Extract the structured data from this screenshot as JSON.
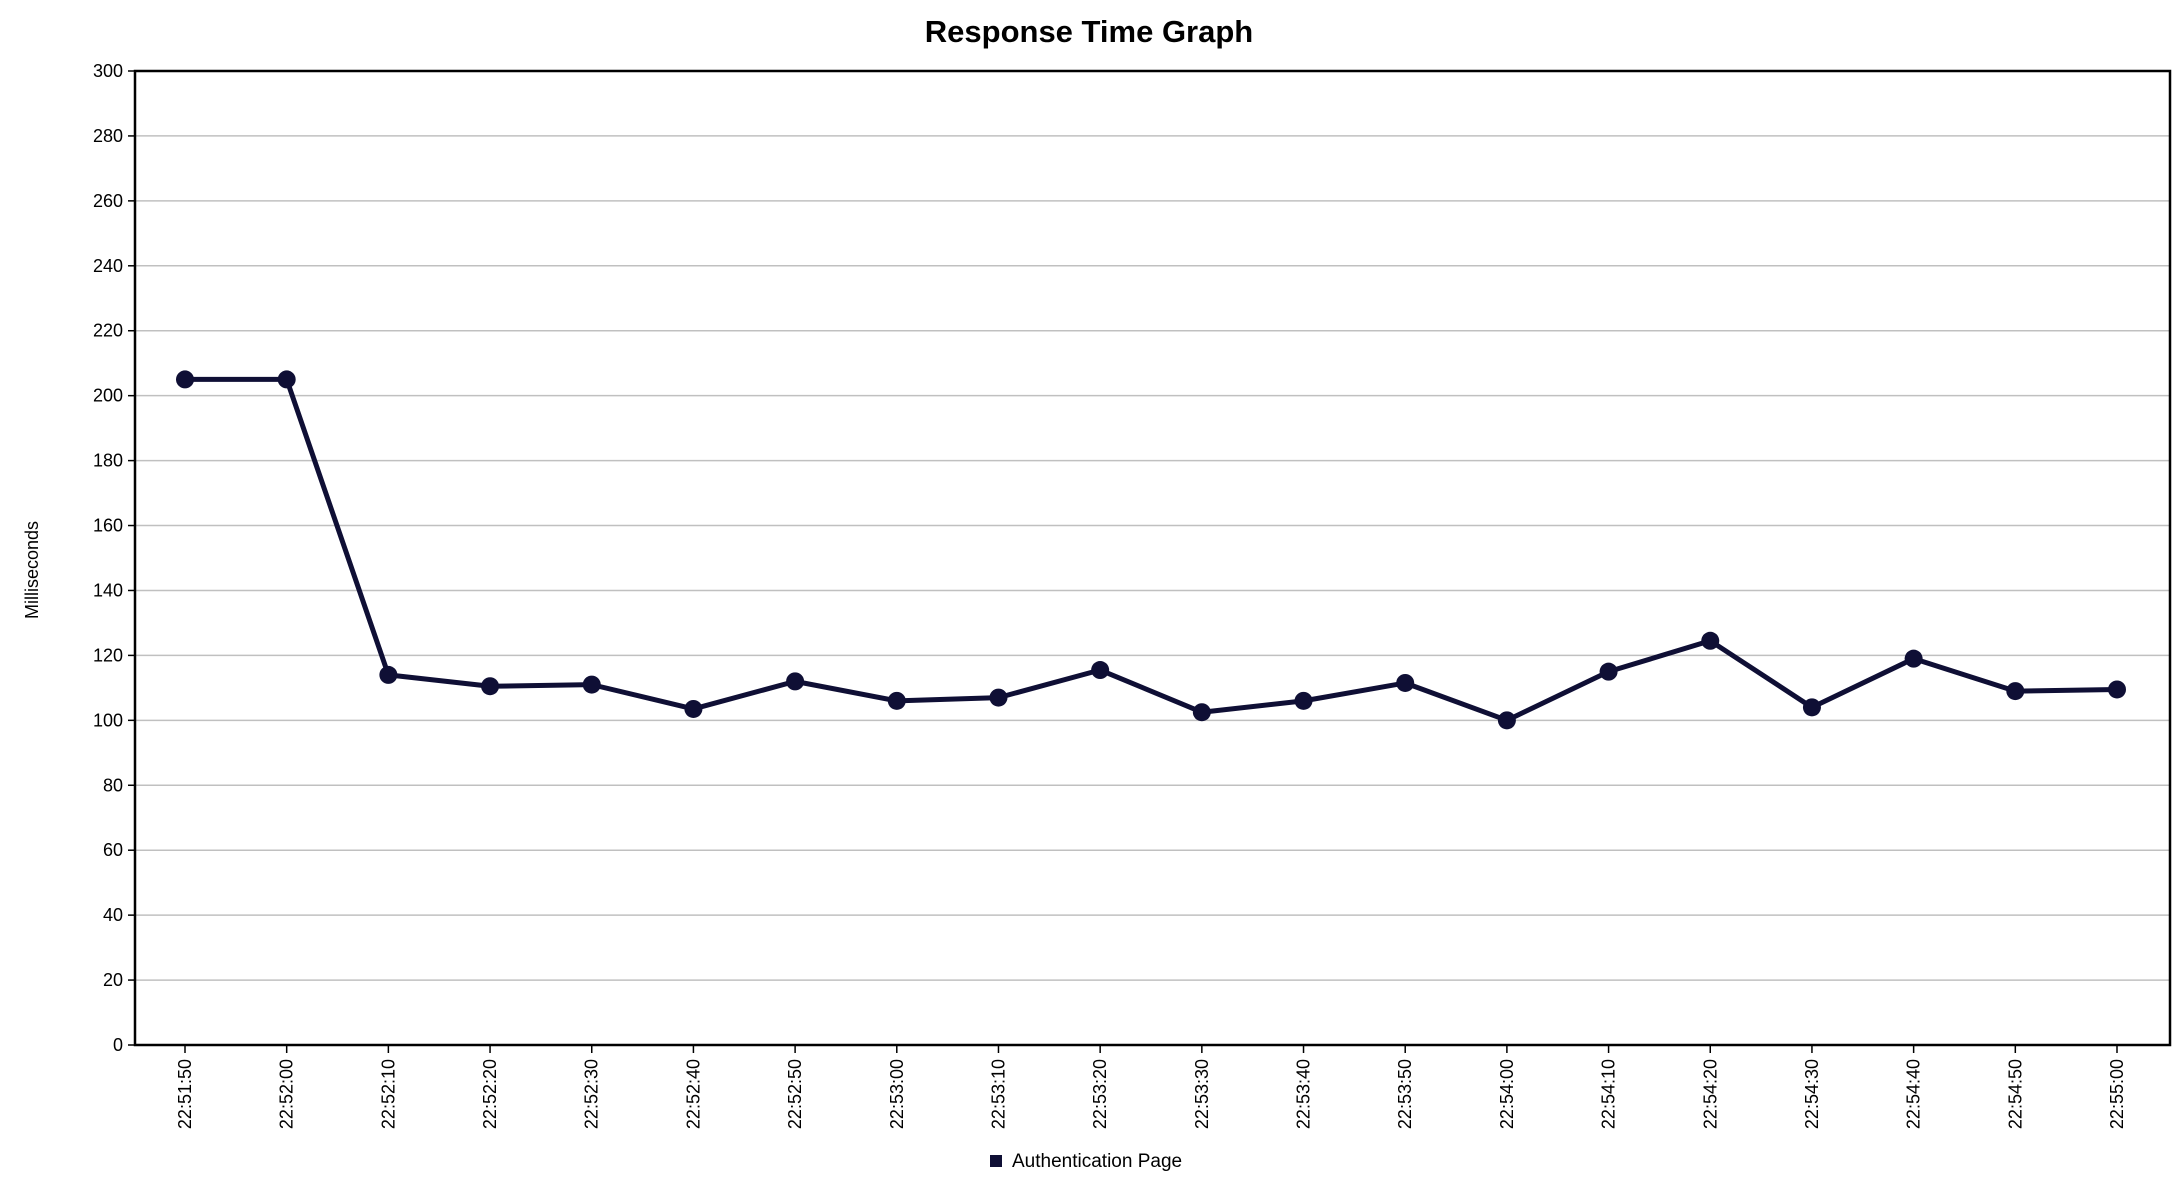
{
  "chart_data": {
    "type": "line",
    "title": "Response Time Graph",
    "xlabel": "",
    "ylabel": "Milliseconds",
    "ylim": [
      0,
      300
    ],
    "yticks": [
      0,
      20,
      40,
      60,
      80,
      100,
      120,
      140,
      160,
      180,
      200,
      220,
      240,
      260,
      280,
      300
    ],
    "grid": true,
    "legend_position": "bottom-center",
    "categories": [
      "22:51:50",
      "22:52:00",
      "22:52:10",
      "22:52:20",
      "22:52:30",
      "22:52:40",
      "22:52:50",
      "22:53:00",
      "22:53:10",
      "22:53:20",
      "22:53:30",
      "22:53:40",
      "22:53:50",
      "22:54:00",
      "22:54:10",
      "22:54:20",
      "22:54:30",
      "22:54:40",
      "22:54:50",
      "22:55:00"
    ],
    "series": [
      {
        "name": "Authentication Page",
        "color": "#0f0f35",
        "values": [
          205,
          205,
          114,
          110.5,
          111,
          103.5,
          112,
          106,
          107,
          115.5,
          102.5,
          106,
          111.5,
          100,
          115,
          124.5,
          104,
          119,
          109,
          109.5
        ]
      }
    ]
  }
}
